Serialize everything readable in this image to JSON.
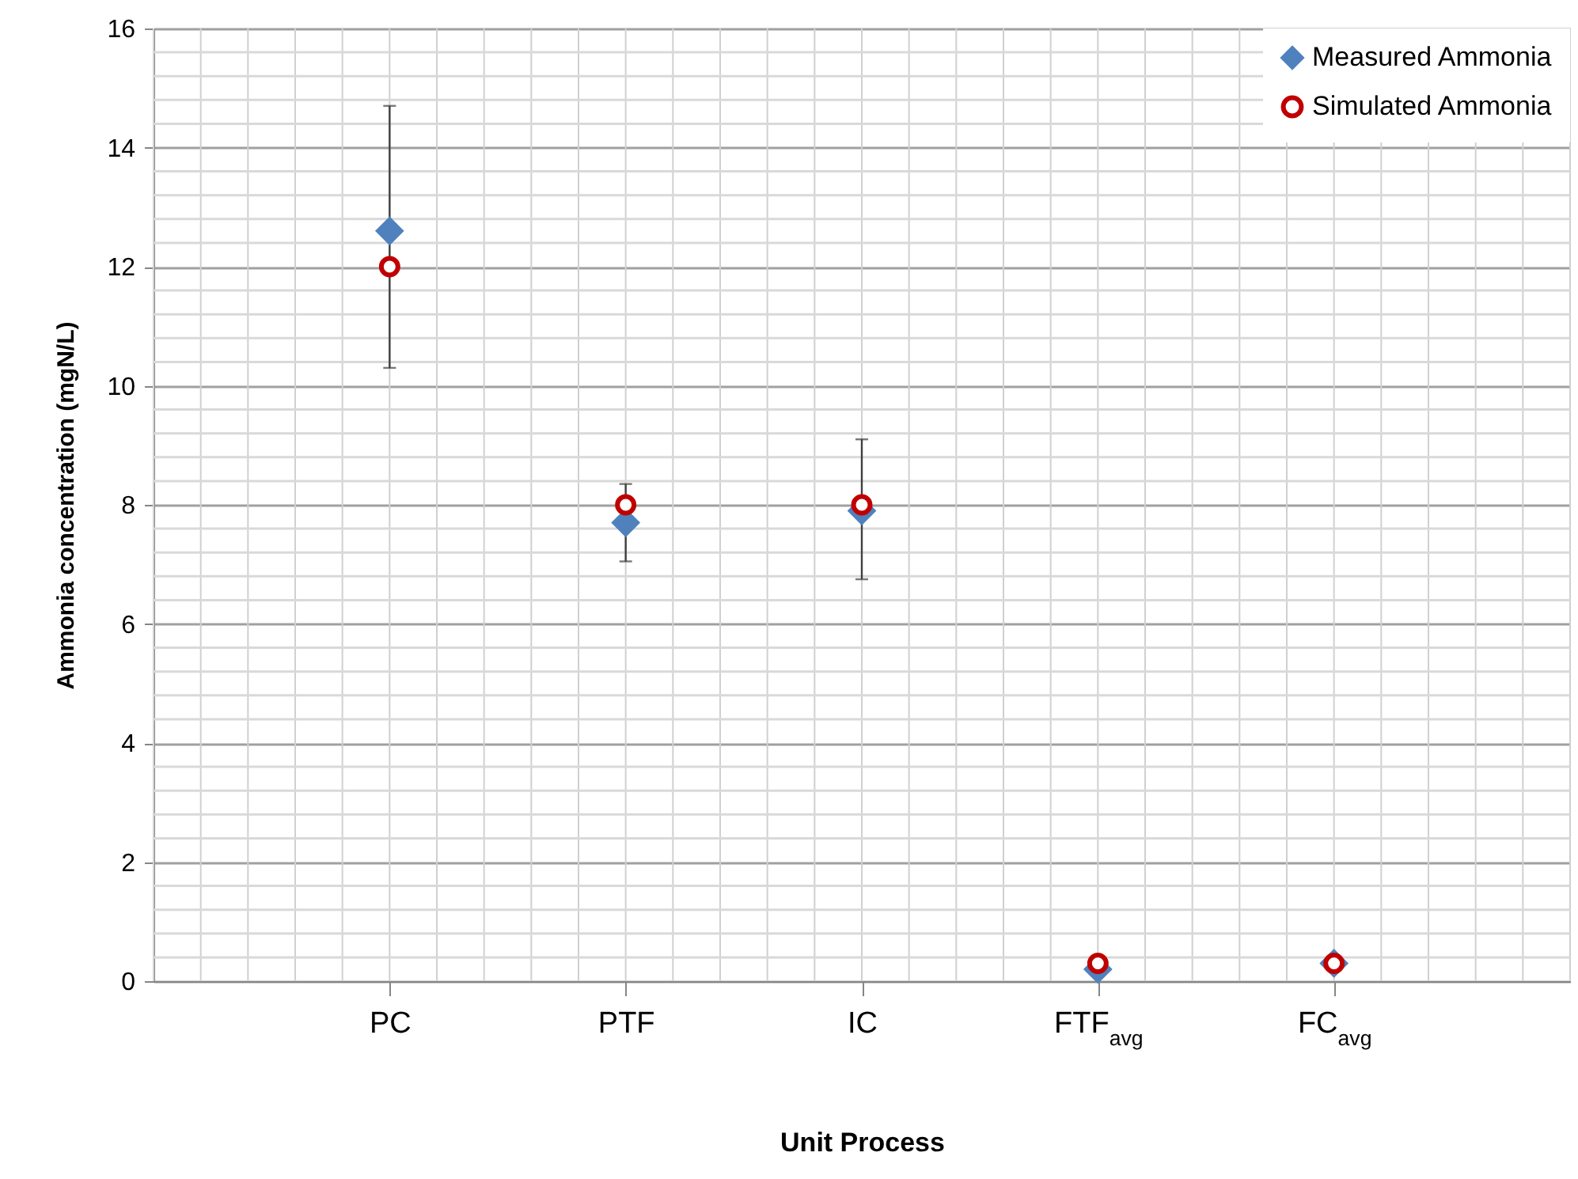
{
  "chart_data": {
    "type": "scatter",
    "xlabel": "Unit Process",
    "ylabel": "Ammonia concentration (mgN/L)",
    "categories": [
      "PC",
      "PTF",
      "IC",
      "FTF$_{avg}$",
      "FC$_{avg}$"
    ],
    "series": [
      {
        "name": "Measured Ammonia",
        "color": "#4f81bd",
        "marker": "diamond",
        "values": [
          12.6,
          7.7,
          7.9,
          0.2,
          0.3
        ],
        "errors": [
          [
            10.3,
            14.7
          ],
          [
            7.05,
            8.35
          ],
          [
            6.75,
            9.1
          ],
          null,
          null
        ]
      },
      {
        "name": "Simulated Ammonia",
        "color": "#c00000",
        "marker": "circle",
        "values": [
          12,
          8,
          8,
          0.3,
          0.3
        ]
      }
    ],
    "ylim": [
      0,
      16
    ],
    "yticks": [
      0,
      2,
      4,
      6,
      8,
      10,
      12,
      14,
      16
    ],
    "grid": true,
    "legend": "top right"
  }
}
